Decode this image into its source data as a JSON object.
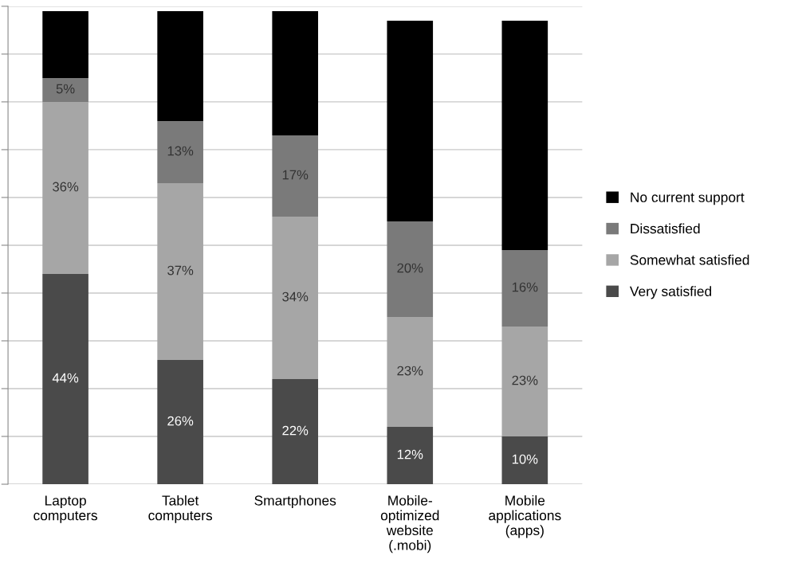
{
  "chart_data": {
    "type": "bar",
    "stacked": true,
    "categories": [
      "Laptop\ncomputers",
      "Tablet\ncomputers",
      "Smartphones",
      "Mobile-\noptimized\nwebsite\n(.mobi)",
      "Mobile\napplications\n(apps)"
    ],
    "series": [
      {
        "name": "Very satisfied",
        "color": "#4a4a4a",
        "values": [
          44,
          26,
          22,
          12,
          10
        ],
        "value_labels": [
          "44%",
          "26%",
          "22%",
          "12%",
          "10%"
        ]
      },
      {
        "name": "Somewhat satisfied",
        "color": "#a6a6a6",
        "values": [
          36,
          37,
          34,
          23,
          23
        ],
        "value_labels": [
          "36%",
          "37%",
          "34%",
          "23%",
          "23%"
        ]
      },
      {
        "name": "Dissatisfied",
        "color": "#7a7a7a",
        "values": [
          5,
          13,
          17,
          20,
          16
        ],
        "value_labels": [
          "5%",
          "13%",
          "17%",
          "20%",
          "16%"
        ]
      },
      {
        "name": "No current support",
        "color": "#000000",
        "values": [
          14,
          23,
          26,
          42,
          48
        ]
      }
    ],
    "ylim": [
      0,
      100
    ],
    "yticks": [
      {
        "value": 0,
        "label": null
      },
      {
        "value": 10,
        "label": null
      },
      {
        "value": 20,
        "label": null
      },
      {
        "value": 30,
        "label": null
      },
      {
        "value": 40,
        "label": null
      },
      {
        "value": 50,
        "label": null
      },
      {
        "value": 60,
        "label": null
      },
      {
        "value": 70,
        "label": null
      },
      {
        "value": 80,
        "label": null
      },
      {
        "value": 90,
        "label": null
      },
      {
        "value": 100,
        "label": null
      }
    ],
    "tick_labels": "x",
    "grid": "y",
    "legend": "right"
  }
}
